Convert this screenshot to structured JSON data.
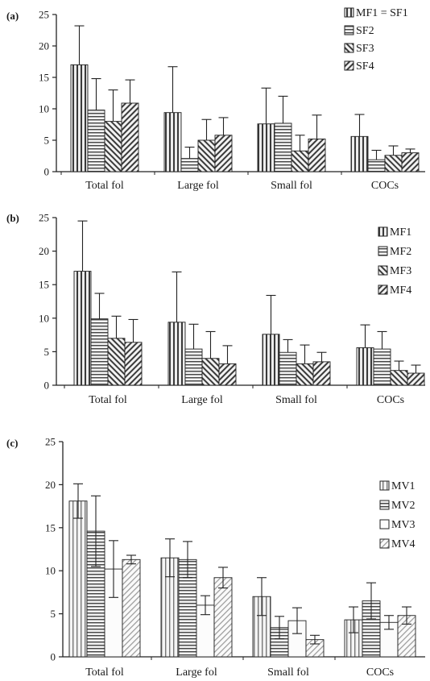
{
  "chart_data": [
    {
      "type": "bar",
      "panel_label": "(a)",
      "categories": [
        "Total fol",
        "Large fol",
        "Small fol",
        "COCs"
      ],
      "ylim": [
        0,
        25
      ],
      "yticks": [
        0,
        5,
        10,
        15,
        20,
        25
      ],
      "error_bars": "upper",
      "legend_position": "top-right",
      "series": [
        {
          "name": "MF1 = SF1",
          "pattern": "vertical",
          "values": [
            17.0,
            9.4,
            7.6,
            5.6
          ],
          "errors": [
            6.2,
            7.3,
            5.7,
            3.5
          ]
        },
        {
          "name": "SF2",
          "pattern": "horizontal",
          "values": [
            9.8,
            2.1,
            7.7,
            1.9
          ],
          "errors": [
            5.0,
            1.8,
            4.3,
            1.5
          ]
        },
        {
          "name": "SF3",
          "pattern": "diag-up",
          "values": [
            8.0,
            5.0,
            3.3,
            2.6
          ],
          "errors": [
            5.0,
            3.3,
            2.5,
            1.5
          ]
        },
        {
          "name": "SF4",
          "pattern": "diag-down",
          "values": [
            10.9,
            5.8,
            5.2,
            3.0
          ],
          "errors": [
            3.7,
            2.8,
            3.8,
            0.6
          ]
        }
      ]
    },
    {
      "type": "bar",
      "panel_label": "(b)",
      "categories": [
        "Total fol",
        "Large fol",
        "Small fol",
        "COCs"
      ],
      "ylim": [
        0,
        25
      ],
      "yticks": [
        0,
        5,
        10,
        15,
        20,
        25
      ],
      "error_bars": "upper",
      "legend_position": "top-right",
      "series": [
        {
          "name": "MF1",
          "pattern": "vertical",
          "values": [
            17.0,
            9.4,
            7.6,
            5.6
          ],
          "errors": [
            7.5,
            7.5,
            5.8,
            3.4
          ]
        },
        {
          "name": "MF2",
          "pattern": "horizontal",
          "values": [
            9.9,
            5.4,
            4.9,
            5.4
          ],
          "errors": [
            3.8,
            3.7,
            1.9,
            2.6
          ]
        },
        {
          "name": "MF3",
          "pattern": "diag-up",
          "values": [
            7.0,
            4.0,
            3.2,
            2.2
          ],
          "errors": [
            3.3,
            4.0,
            2.8,
            1.4
          ]
        },
        {
          "name": "MF4",
          "pattern": "diag-down",
          "values": [
            6.4,
            3.2,
            3.5,
            1.8
          ],
          "errors": [
            3.4,
            2.7,
            1.4,
            1.2
          ]
        }
      ]
    },
    {
      "type": "bar",
      "panel_label": "(c)",
      "categories": [
        "Total fol",
        "Large fol",
        "Small fol",
        "COCs"
      ],
      "ylim": [
        0,
        25
      ],
      "yticks": [
        0,
        5,
        10,
        15,
        20,
        25
      ],
      "error_bars": "both",
      "legend_position": "top-right",
      "series": [
        {
          "name": "MV1",
          "pattern": "vertical-light",
          "values": [
            18.1,
            11.5,
            7.0,
            4.3
          ],
          "errors": [
            2.0,
            2.2,
            2.2,
            1.5
          ]
        },
        {
          "name": "MV2",
          "pattern": "horizontal",
          "values": [
            14.6,
            11.3,
            3.4,
            6.5
          ],
          "errors": [
            4.1,
            2.1,
            1.3,
            2.1
          ]
        },
        {
          "name": "MV3",
          "pattern": "open",
          "values": [
            10.2,
            6.0,
            4.2,
            4.0
          ],
          "errors": [
            3.3,
            1.1,
            1.5,
            0.8
          ]
        },
        {
          "name": "MV4",
          "pattern": "diag-light",
          "values": [
            11.3,
            9.2,
            2.0,
            4.8
          ],
          "errors": [
            0.5,
            1.2,
            0.5,
            1.0
          ]
        }
      ]
    }
  ]
}
